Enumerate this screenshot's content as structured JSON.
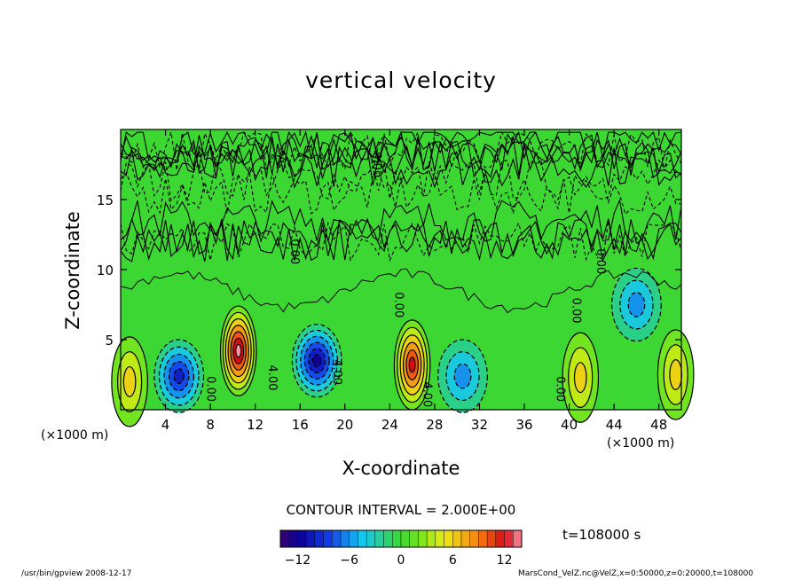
{
  "chart_data": {
    "type": "heatmap",
    "title": "vertical velocity",
    "xlabel": "X-coordinate",
    "ylabel": "Z-coordinate",
    "xunit": "(×1000 m)",
    "xlim": [
      0,
      50
    ],
    "ylim": [
      0,
      20
    ],
    "x_ticks": [
      4,
      8,
      12,
      16,
      20,
      24,
      28,
      32,
      36,
      40,
      44,
      48
    ],
    "y_ticks": [
      5,
      10,
      15
    ],
    "contour_interval_text": "CONTOUR INTERVAL = 2.000E+00",
    "contour_labels": [
      {
        "text": "0.00",
        "x": 7.7,
        "z": 2.4
      },
      {
        "text": "4.00",
        "x": 13.2,
        "z": 3.2
      },
      {
        "text": "4.00",
        "x": 19.0,
        "z": 3.6
      },
      {
        "text": "0.00",
        "x": 24.5,
        "z": 8.4
      },
      {
        "text": "4.00",
        "x": 27.0,
        "z": 2.0
      },
      {
        "text": "0.00",
        "x": 38.9,
        "z": 2.4
      },
      {
        "text": "0.00",
        "x": 40.3,
        "z": 8.0
      },
      {
        "text": "0.00",
        "x": 15.2,
        "z": 12.2
      },
      {
        "text": "0.00",
        "x": 42.5,
        "z": 11.5
      },
      {
        "text": "0.00",
        "x": 22.5,
        "z": 18.4
      }
    ],
    "features": [
      {
        "kind": "updraft",
        "x": 10.5,
        "z": 4.2,
        "value": 14
      },
      {
        "kind": "updraft",
        "x": 26.0,
        "z": 3.2,
        "value": 12
      },
      {
        "kind": "updraft",
        "x": 41.0,
        "z": 2.3,
        "value": 6
      },
      {
        "kind": "updraft",
        "x": 49.5,
        "z": 2.5,
        "value": 6
      },
      {
        "kind": "updraft",
        "x": 0.8,
        "z": 2.0,
        "value": 6
      },
      {
        "kind": "downdraft",
        "x": 5.2,
        "z": 2.4,
        "value": -10
      },
      {
        "kind": "downdraft",
        "x": 17.5,
        "z": 3.5,
        "value": -12
      },
      {
        "kind": "downdraft",
        "x": 30.5,
        "z": 2.4,
        "value": -6
      },
      {
        "kind": "downdraft",
        "x": 46.0,
        "z": 7.5,
        "value": -6
      }
    ],
    "colorbar": {
      "min": -14,
      "max": 14,
      "tick_labels": [
        "-12",
        "-6",
        "0",
        "6",
        "12"
      ],
      "tick_values": [
        -12,
        -6,
        0,
        6,
        12
      ]
    },
    "time_label": "t=108000 s"
  },
  "footer": {
    "left": "/usr/bin/gpview  2008-12-17",
    "right": "MarsCond_VelZ.nc@VelZ,x=0:50000,z=0:20000,t=108000"
  }
}
